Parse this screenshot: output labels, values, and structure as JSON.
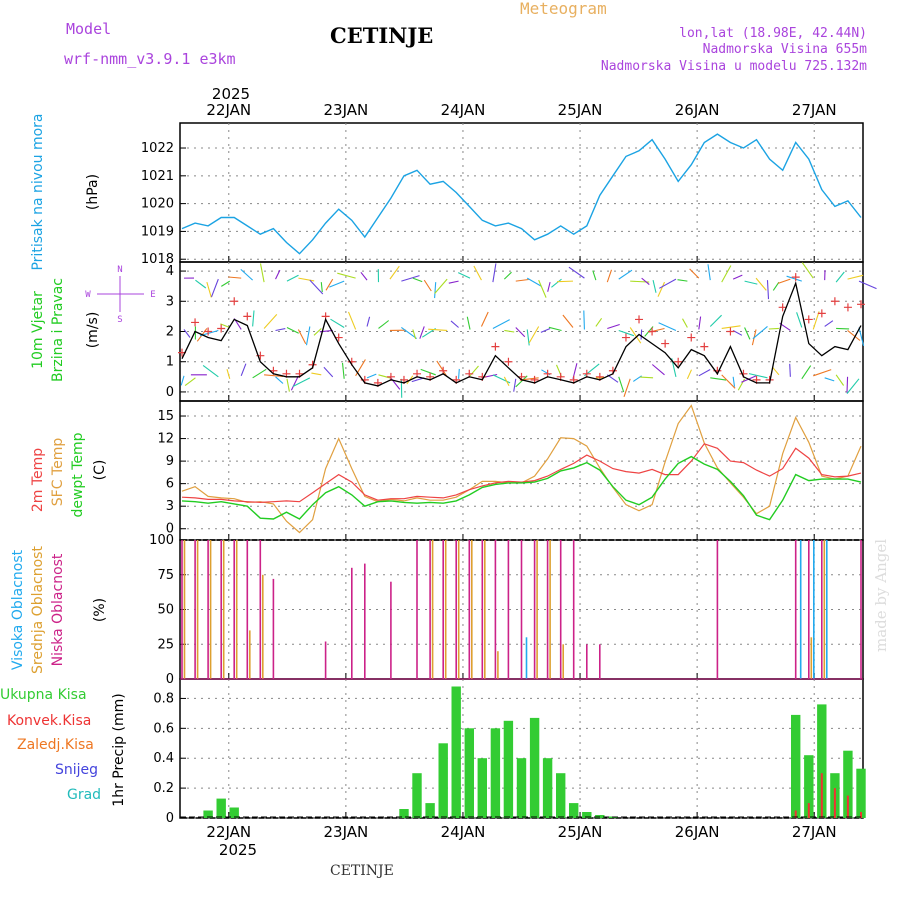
{
  "header": {
    "model_label": "Model",
    "model_name": "wrf-nmm_v3.9.1  e3km",
    "city": "CETINJE",
    "product": "Meteogram",
    "lonlat": "lon,lat (18.98E, 42.44N)",
    "altitude": "Nadmorska Visina 655m",
    "model_altitude": "Nadmorska Visina u modelu 725.132m",
    "footer_city": "CETINJE",
    "watermark": "made by Angel"
  },
  "colors": {
    "pressure": "#1ba3e3",
    "wind_speed": "#000000",
    "gust": "#e34040",
    "temp2m": "#ee4444",
    "sfc_temp": "#e0a040",
    "dewpt": "#22cc22",
    "high_cloud": "#22aaee",
    "mid_cloud": "#dda030",
    "low_cloud": "#cc2288",
    "total_precip": "#33cc33",
    "conv_precip": "#ee3333",
    "frozen_precip": "#ee7722",
    "snow": "#4444dd",
    "hail": "#22bbbb",
    "model_label": "#aa44dd",
    "product": "#e8b060"
  },
  "time_axis": {
    "year_label": "2025",
    "dates": [
      "22JAN",
      "23JAN",
      "24JAN",
      "25JAN",
      "26JAN",
      "27JAN"
    ],
    "hours_range": [
      -10,
      130
    ]
  },
  "chart_data": [
    {
      "type": "line",
      "id": "pressure",
      "title": "Pritisak na nivou mora",
      "ylabel": "(hPa)",
      "ylim": [
        1017.9,
        1022.9
      ],
      "yticks": [
        1018,
        1019,
        1020,
        1021,
        1022
      ],
      "series": [
        {
          "name": "Pressure",
          "values": [
            1019.1,
            1019.3,
            1019.2,
            1019.5,
            1019.5,
            1019.2,
            1018.9,
            1019.1,
            1018.6,
            1018.2,
            1018.7,
            1019.3,
            1019.8,
            1019.4,
            1018.8,
            1019.5,
            1020.2,
            1021.0,
            1021.2,
            1020.7,
            1020.8,
            1020.4,
            1019.9,
            1019.4,
            1019.2,
            1019.3,
            1019.1,
            1018.7,
            1018.9,
            1019.2,
            1018.9,
            1019.2,
            1020.3,
            1021.0,
            1021.7,
            1021.9,
            1022.3,
            1021.6,
            1020.8,
            1021.4,
            1022.2,
            1022.5,
            1022.2,
            1022.0,
            1022.3,
            1021.6,
            1021.2,
            1022.2,
            1021.6,
            1020.5,
            1019.9,
            1020.1,
            1019.5
          ]
        }
      ]
    },
    {
      "type": "line",
      "id": "wind",
      "title": "10m Vjetar",
      "subtitle": "Brzina i Pravac",
      "ylabel": "(m/s)",
      "direction_legend": [
        "N",
        "W",
        "E",
        "S"
      ],
      "ylim": [
        -0.3,
        4.3
      ],
      "yticks": [
        0,
        1,
        2,
        3,
        4
      ],
      "series": [
        {
          "name": "Wind speed",
          "values": [
            1.1,
            2.0,
            1.8,
            1.7,
            2.4,
            2.2,
            1.0,
            0.6,
            0.5,
            0.5,
            0.8,
            2.4,
            1.6,
            0.9,
            0.3,
            0.2,
            0.4,
            0.3,
            0.5,
            0.4,
            0.6,
            0.3,
            0.5,
            0.4,
            1.2,
            0.8,
            0.4,
            0.3,
            0.5,
            0.4,
            0.3,
            0.5,
            0.4,
            0.6,
            1.5,
            1.9,
            1.6,
            1.3,
            0.8,
            1.4,
            1.2,
            0.6,
            1.5,
            0.5,
            0.3,
            0.3,
            2.5,
            3.6,
            1.6,
            1.2,
            1.5,
            1.4,
            2.2
          ]
        },
        {
          "name": "Wind gust",
          "values": [
            1.3,
            2.3,
            2.0,
            2.1,
            3.0,
            2.5,
            1.2,
            0.7,
            0.6,
            0.6,
            0.9,
            2.5,
            1.8,
            1.0,
            0.4,
            0.3,
            0.5,
            0.4,
            0.6,
            0.5,
            0.7,
            0.4,
            0.6,
            0.5,
            1.5,
            1.0,
            0.5,
            0.4,
            0.6,
            0.5,
            0.4,
            0.6,
            0.5,
            0.7,
            1.8,
            2.4,
            2.0,
            1.6,
            1.0,
            1.8,
            1.5,
            0.7,
            2.0,
            0.6,
            0.4,
            0.4,
            2.8,
            3.8,
            2.4,
            2.6,
            3.0,
            2.8,
            2.9
          ]
        }
      ]
    },
    {
      "type": "line",
      "id": "temperature",
      "title": "2m Temp",
      "subtitle": "SFC Temp",
      "subtitle2": "dewpt Temp",
      "ylabel": "(C)",
      "ylim": [
        -1.5,
        17
      ],
      "yticks": [
        0,
        3,
        6,
        9,
        12,
        15
      ],
      "series": [
        {
          "name": "2m Temp",
          "values": [
            4.2,
            4.1,
            3.9,
            3.9,
            3.7,
            3.6,
            3.5,
            3.6,
            3.7,
            3.6,
            4.8,
            6.0,
            7.2,
            6.2,
            4.5,
            3.8,
            4.0,
            4.0,
            4.3,
            4.2,
            4.1,
            4.5,
            5.2,
            5.7,
            6.1,
            6.3,
            6.2,
            6.4,
            7.0,
            7.9,
            8.7,
            9.8,
            9.0,
            8.0,
            7.6,
            7.4,
            7.9,
            7.2,
            7.2,
            9.0,
            11.3,
            10.7,
            9.0,
            8.8,
            7.8,
            7.0,
            8.0,
            10.7,
            9.4,
            7.2,
            6.9,
            7.0,
            7.4
          ]
        },
        {
          "name": "SFC Temp",
          "values": [
            5.0,
            5.6,
            4.3,
            4.1,
            4.0,
            3.5,
            3.6,
            3.3,
            1.0,
            -0.5,
            1.2,
            8.0,
            12.0,
            8.0,
            4.3,
            3.6,
            3.9,
            3.7,
            4.1,
            3.8,
            3.8,
            4.2,
            5.2,
            6.3,
            6.3,
            6.1,
            6.1,
            7.0,
            9.3,
            12.1,
            12.0,
            11.0,
            8.1,
            5.5,
            3.2,
            2.4,
            3.2,
            8.9,
            14.0,
            16.4,
            11.4,
            8.1,
            6.1,
            4.2,
            2.0,
            3.0,
            10.0,
            14.8,
            11.5,
            7.0,
            6.6,
            7.0,
            11.0
          ]
        },
        {
          "name": "Dewpt Temp",
          "values": [
            3.7,
            3.6,
            3.4,
            3.6,
            3.3,
            3.0,
            1.4,
            1.3,
            2.2,
            1.3,
            3.2,
            4.8,
            5.6,
            4.5,
            3.0,
            3.6,
            3.7,
            3.5,
            3.4,
            3.5,
            3.4,
            3.7,
            4.5,
            5.5,
            5.9,
            6.1,
            6.1,
            6.2,
            6.7,
            7.7,
            8.1,
            8.8,
            7.8,
            5.6,
            3.8,
            3.2,
            4.2,
            6.6,
            8.7,
            9.6,
            8.6,
            7.9,
            6.3,
            4.4,
            1.8,
            1.2,
            3.8,
            7.2,
            6.4,
            6.6,
            6.6,
            6.6,
            6.2
          ]
        }
      ]
    },
    {
      "type": "bar",
      "id": "cloud",
      "title": "Visoka Oblacnost",
      "subtitle": "Srednja Oblacnost",
      "subtitle2": "Niska Oblacnost",
      "ylabel": "(%)",
      "ylim": [
        0,
        100
      ],
      "yticks": [
        0,
        25,
        50,
        75,
        100
      ],
      "series": [
        {
          "name": "Niska",
          "values": [
            100,
            100,
            100,
            100,
            100,
            100,
            100,
            72,
            0,
            0,
            0,
            27,
            0,
            80,
            83,
            0,
            70,
            0,
            100,
            100,
            100,
            100,
            100,
            100,
            100,
            100,
            100,
            100,
            100,
            100,
            100,
            25,
            25,
            0,
            0,
            0,
            0,
            0,
            0,
            0,
            0,
            100,
            0,
            0,
            0,
            0,
            0,
            100,
            100,
            100,
            0,
            0,
            100
          ]
        },
        {
          "name": "Srednja",
          "values": [
            100,
            100,
            100,
            100,
            100,
            35,
            75,
            0,
            0,
            0,
            0,
            0,
            0,
            0,
            0,
            0,
            0,
            0,
            0,
            100,
            100,
            100,
            100,
            100,
            20,
            0,
            0,
            100,
            100,
            25,
            0,
            0,
            0,
            0,
            0,
            0,
            0,
            0,
            0,
            0,
            0,
            0,
            0,
            0,
            0,
            0,
            0,
            0,
            30,
            100,
            0,
            0,
            0
          ]
        },
        {
          "name": "Visoka",
          "values": [
            0,
            0,
            0,
            0,
            0,
            0,
            0,
            0,
            0,
            0,
            0,
            0,
            0,
            0,
            0,
            0,
            0,
            0,
            0,
            0,
            0,
            0,
            0,
            0,
            0,
            0,
            30,
            0,
            0,
            0,
            0,
            0,
            0,
            0,
            0,
            0,
            0,
            0,
            0,
            0,
            0,
            0,
            0,
            0,
            0,
            0,
            0,
            100,
            100,
            100,
            0,
            0,
            0
          ]
        }
      ]
    },
    {
      "type": "bar",
      "id": "precip",
      "title": "Ukupna Kisa",
      "subtitle": "Konvek.Kisa",
      "subtitle2": "Zaledj.Kisa",
      "subtitle3": "Snijeg",
      "subtitle4": "Grad",
      "ylabel": "1hr Precip (mm)",
      "ylim": [
        0,
        0.93
      ],
      "yticks": [
        0,
        0.2,
        0.4,
        0.6,
        0.8
      ],
      "series": [
        {
          "name": "Ukupna Kisa",
          "values": [
            0,
            0,
            0.05,
            0.13,
            0.07,
            0,
            0,
            0,
            0,
            0,
            0,
            0,
            0,
            0,
            0,
            0,
            0,
            0.06,
            0.3,
            0.1,
            0.5,
            0.88,
            0.6,
            0.4,
            0.6,
            0.65,
            0.4,
            0.67,
            0.4,
            0.3,
            0.1,
            0.04,
            0.02,
            0.01,
            0,
            0,
            0,
            0,
            0,
            0,
            0,
            0,
            0,
            0,
            0,
            0,
            0,
            0.69,
            0.42,
            0.76,
            0.3,
            0.45,
            0.33
          ]
        },
        {
          "name": "Konvek.Kisa",
          "values": [
            0,
            0,
            0,
            0,
            0,
            0,
            0,
            0,
            0,
            0,
            0,
            0,
            0,
            0,
            0,
            0,
            0,
            0,
            0,
            0,
            0,
            0,
            0,
            0,
            0,
            0,
            0,
            0,
            0,
            0,
            0,
            0,
            0,
            0,
            0,
            0,
            0,
            0,
            0,
            0,
            0,
            0,
            0,
            0,
            0,
            0,
            0,
            0.05,
            0.1,
            0.3,
            0.2,
            0.15,
            0.04
          ]
        }
      ]
    }
  ]
}
